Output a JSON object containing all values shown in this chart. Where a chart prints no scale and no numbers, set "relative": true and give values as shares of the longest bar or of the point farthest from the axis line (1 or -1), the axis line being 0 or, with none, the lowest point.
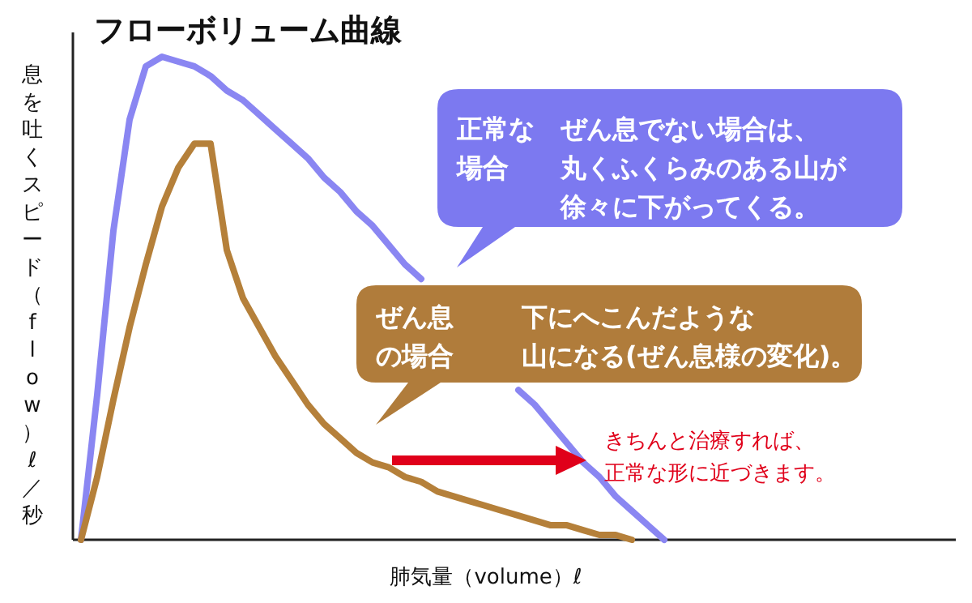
{
  "chart_data": {
    "type": "line",
    "relative": true,
    "title": "フローボリューム曲線",
    "xlabel": "肺気量（volume）ℓ",
    "ylabel": "息を吐くスピード（flow）ℓ／秒",
    "categories": [
      null,
      null,
      null,
      null,
      null,
      null,
      null,
      null,
      null,
      null,
      null,
      null,
      null,
      null,
      null,
      null,
      null,
      null,
      null,
      null,
      null,
      null,
      null,
      null,
      null,
      null,
      null,
      null,
      null,
      null,
      null,
      null,
      null,
      null,
      null,
      null,
      null
    ],
    "series": [
      {
        "color": "#8a86f2",
        "values": [
          0,
          0.3,
          0.64,
          0.87,
          0.98,
          1,
          0.99,
          0.98,
          0.96,
          0.93,
          0.91,
          0.88,
          0.85,
          0.82,
          0.79,
          0.75,
          0.72,
          0.68,
          0.65,
          0.61,
          0.57,
          0.54,
          null,
          null,
          null,
          null,
          null,
          0.31,
          0.28,
          0.24,
          0.2,
          0.16,
          0.13,
          0.09,
          0.06,
          0.03,
          0
        ]
      },
      {
        "color": "#b5803a",
        "values": [
          0,
          0.13,
          0.29,
          0.44,
          0.57,
          0.69,
          0.77,
          0.82,
          0.82,
          0.6,
          0.5,
          0.44,
          0.38,
          0.33,
          0.28,
          0.24,
          0.21,
          0.18,
          0.16,
          0.15,
          0.13,
          0.12,
          0.1,
          0.09,
          0.08,
          0.07,
          0.06,
          0.05,
          0.04,
          0.03,
          0.03,
          0.02,
          0.01,
          0.01,
          0,
          null,
          null
        ]
      }
    ],
    "annotations": [
      "正常な",
      "場合",
      "ぜん息でない場合は、",
      "丸くふくらみのある山が",
      "徐々に下がってくる。",
      "ぜん息",
      "の場合",
      "下にへこんだような",
      "山になる(ぜん息様の変化)。",
      "きちんと治療すれば、",
      "正常な形に近づきます。"
    ]
  }
}
